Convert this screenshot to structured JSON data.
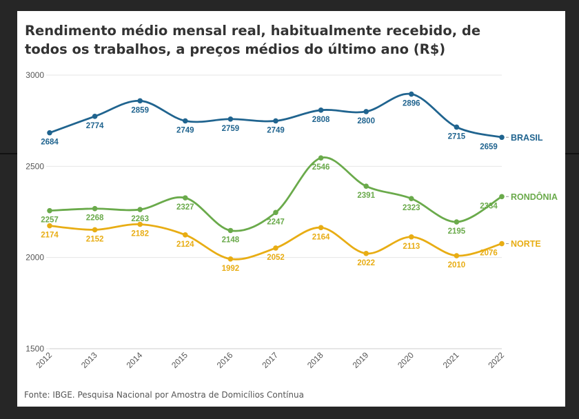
{
  "chart_data": {
    "type": "line",
    "title": "Rendimento médio mensal real, habitualmente recebido, de todos os trabalhos, a preços médios do último ano (R$)",
    "source": "Fonte: IBGE. Pesquisa Nacional por Amostra de Domicílios Contínua",
    "x": [
      "2012",
      "2013",
      "2014",
      "2015",
      "2016",
      "2017",
      "2018",
      "2019",
      "2020",
      "2021",
      "2022"
    ],
    "ylim": [
      1500,
      3000
    ],
    "yticks": [
      1500,
      2000,
      2500,
      3000
    ],
    "grid": true,
    "legend": "end-of-line labels",
    "series": [
      {
        "name": "BRASIL",
        "color": "#20648f",
        "values": [
          2684,
          2774,
          2859,
          2749,
          2759,
          2749,
          2808,
          2800,
          2896,
          2715,
          2659
        ]
      },
      {
        "name": "RONDÔNIA",
        "color": "#6aaa4b",
        "values": [
          2257,
          2268,
          2263,
          2327,
          2148,
          2247,
          2546,
          2391,
          2323,
          2195,
          2334
        ]
      },
      {
        "name": "NORTE",
        "color": "#e8ad14",
        "values": [
          2174,
          2152,
          2182,
          2124,
          1992,
          2052,
          2164,
          2022,
          2113,
          2010,
          2076
        ]
      }
    ]
  }
}
